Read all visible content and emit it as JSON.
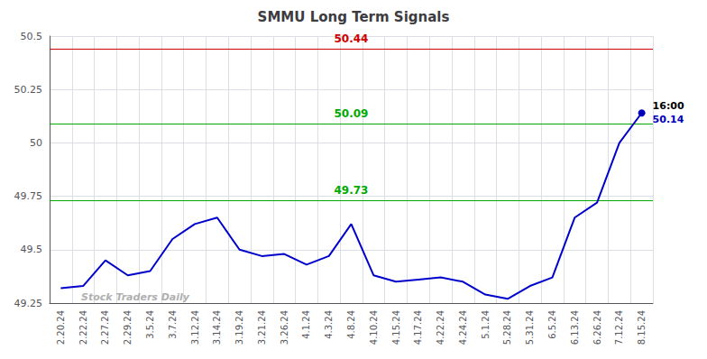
{
  "chart_data": {
    "type": "line",
    "title": "SMMU Long Term Signals",
    "categories": [
      "2.20.24",
      "2.22.24",
      "2.27.24",
      "2.29.24",
      "3.5.24",
      "3.7.24",
      "3.12.24",
      "3.14.24",
      "3.19.24",
      "3.21.24",
      "3.26.24",
      "4.1.24",
      "4.3.24",
      "4.8.24",
      "4.10.24",
      "4.15.24",
      "4.17.24",
      "4.22.24",
      "4.24.24",
      "5.1.24",
      "5.28.24",
      "5.31.24",
      "6.5.24",
      "6.13.24",
      "6.26.24",
      "7.12.24",
      "8.15.24"
    ],
    "values": [
      49.32,
      49.33,
      49.45,
      49.38,
      49.4,
      49.55,
      49.62,
      49.65,
      49.5,
      49.47,
      49.48,
      49.43,
      49.47,
      49.62,
      49.38,
      49.35,
      49.36,
      49.37,
      49.35,
      49.29,
      49.27,
      49.33,
      49.37,
      49.65,
      49.72,
      50.0,
      50.14
    ],
    "color": "#0000cc",
    "ylim": [
      49.25,
      50.5
    ],
    "yticks": [
      49.25,
      49.5,
      49.75,
      50,
      50.25,
      50.5
    ],
    "grid": true,
    "hlines": [
      {
        "value": 50.44,
        "label": "50.44",
        "color": "#cc0000"
      },
      {
        "value": 50.09,
        "label": "50.09",
        "color": "#00aa00"
      },
      {
        "value": 49.73,
        "label": "49.73",
        "color": "#00aa00"
      }
    ],
    "last_point": {
      "color": "#0000bb",
      "label": "50.14",
      "time": "16:00"
    },
    "watermark": {
      "text": "Stock Traders Daily",
      "color": "#b0b0b0"
    }
  }
}
